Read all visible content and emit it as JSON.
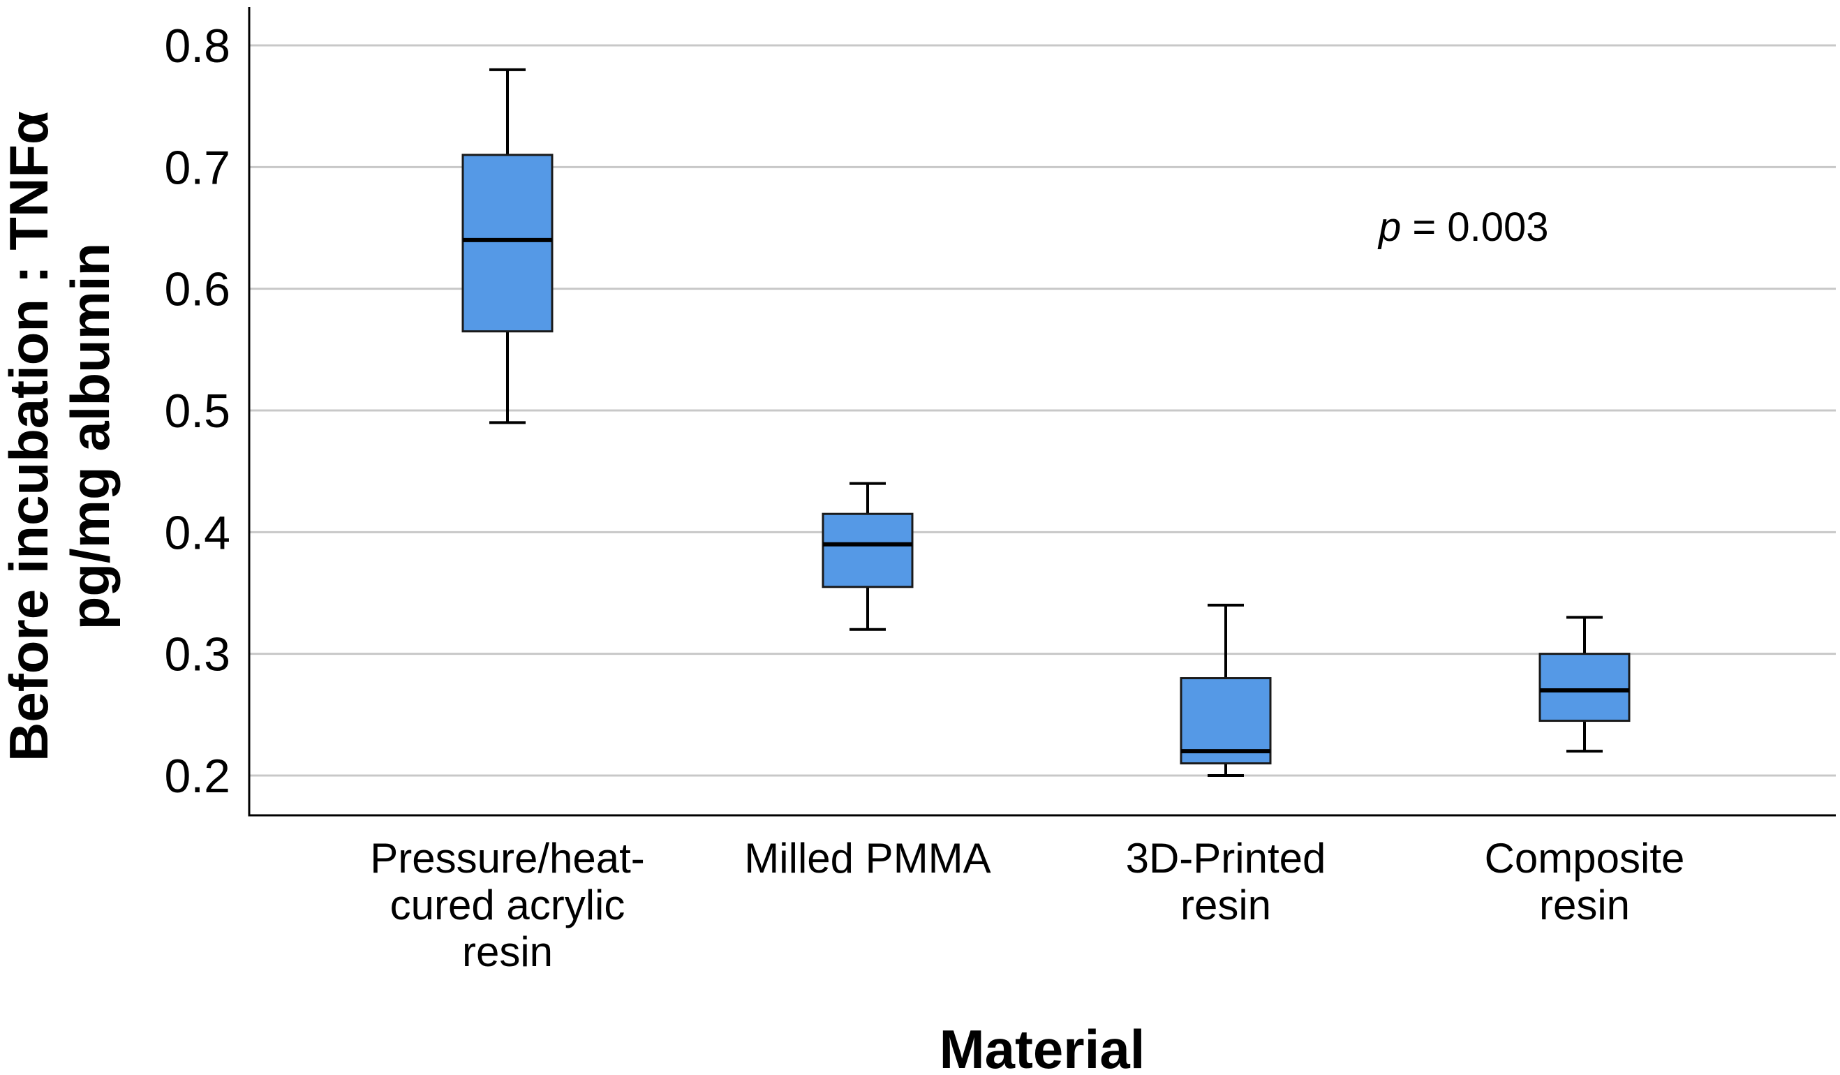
{
  "chart_data": {
    "type": "box",
    "title": "",
    "xlabel": "Material",
    "ylabel_lines": [
      "Before incubation : TNFα",
      "pg/mg albumin"
    ],
    "ylim": [
      0.17,
      0.83
    ],
    "yticks": [
      "0.2",
      "0.3",
      "0.4",
      "0.5",
      "0.6",
      "0.7",
      "0.8"
    ],
    "ytick_values": [
      0.2,
      0.3,
      0.4,
      0.5,
      0.6,
      0.7,
      0.8
    ],
    "grid": true,
    "box_color": "#5599e6",
    "categories": [
      {
        "label_lines": [
          "Pressure/heat-",
          "cured acrylic",
          "resin"
        ],
        "min": 0.49,
        "q1": 0.565,
        "median": 0.64,
        "q3": 0.71,
        "max": 0.78
      },
      {
        "label_lines": [
          "Milled PMMA"
        ],
        "min": 0.32,
        "q1": 0.355,
        "median": 0.39,
        "q3": 0.415,
        "max": 0.44
      },
      {
        "label_lines": [
          "3D-Printed",
          "resin"
        ],
        "min": 0.2,
        "q1": 0.21,
        "median": 0.22,
        "q3": 0.28,
        "max": 0.34
      },
      {
        "label_lines": [
          "Composite",
          "resin"
        ],
        "min": 0.22,
        "q1": 0.245,
        "median": 0.27,
        "q3": 0.3,
        "max": 0.33
      }
    ],
    "annotation": {
      "p_symbol": "p",
      "p_text": " = 0.003"
    }
  }
}
